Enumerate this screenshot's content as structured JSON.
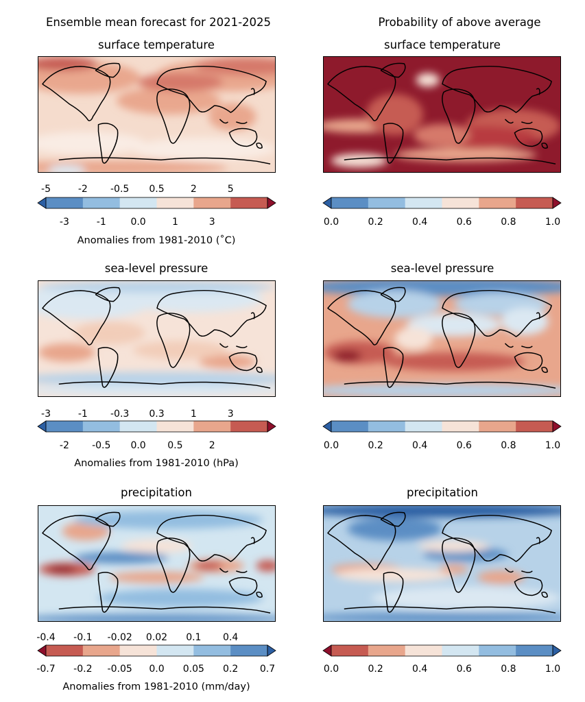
{
  "header": {
    "left_title": "Ensemble mean forecast for 2021-2025",
    "right_title": "Probability of above average"
  },
  "rows": [
    {
      "variable": "surface temperature",
      "left": {
        "upper_ticks": [
          "-5",
          "-2",
          "-0.5",
          "0.5",
          "2",
          "5"
        ],
        "lower_ticks": [
          "-3",
          "-1",
          "0.0",
          "1",
          "3"
        ],
        "label": "Anomalies from 1981-2010 (˚C)",
        "colors": [
          "#2c5fa3",
          "#5b8ec4",
          "#93bde0",
          "#d3e6f1",
          "#f6e3d8",
          "#e8a68c",
          "#c65b52",
          "#8e0f2b"
        ],
        "map_base": "#f5dccd",
        "map_blobs": [
          [
            "#e9a78e",
            0.18,
            0.18,
            0.25,
            0.14
          ],
          [
            "#e9a78e",
            0.8,
            0.16,
            0.3,
            0.14
          ],
          [
            "#d6796a",
            0.88,
            0.08,
            0.22,
            0.08
          ],
          [
            "#e9a78e",
            0.55,
            0.38,
            0.22,
            0.12
          ],
          [
            "#d6796a",
            0.6,
            0.22,
            0.18,
            0.08
          ],
          [
            "#e9a78e",
            0.82,
            0.52,
            0.1,
            0.12
          ],
          [
            "#f9ece4",
            0.2,
            0.75,
            0.25,
            0.1
          ],
          [
            "#f9ece4",
            0.7,
            0.8,
            0.3,
            0.1
          ],
          [
            "#e9a78e",
            0.3,
            0.96,
            0.5,
            0.06
          ],
          [
            "#c65b52",
            0.1,
            0.06,
            0.15,
            0.06
          ],
          [
            "#dbe8f2",
            0.12,
            0.98,
            0.08,
            0.04
          ]
        ]
      },
      "right": {
        "ticks": [
          "0.0",
          "0.2",
          "0.4",
          "0.6",
          "0.8",
          "1.0"
        ],
        "colors": [
          "#2c5fa3",
          "#5b8ec4",
          "#93bde0",
          "#d3e6f1",
          "#f6e3d8",
          "#e8a68c",
          "#c65b52",
          "#8e0f2b"
        ],
        "map_base": "#8e1a2c",
        "map_blobs": [
          [
            "#f6e3d8",
            0.44,
            0.2,
            0.05,
            0.06
          ],
          [
            "#e8a68c",
            0.15,
            0.6,
            0.18,
            0.06
          ],
          [
            "#e8a68c",
            0.6,
            0.85,
            0.3,
            0.06
          ],
          [
            "#f6e3d8",
            0.15,
            0.9,
            0.12,
            0.06
          ],
          [
            "#c65b52",
            0.8,
            0.6,
            0.2,
            0.15
          ],
          [
            "#c65b52",
            0.3,
            0.5,
            0.12,
            0.18
          ],
          [
            "#b83a3f",
            0.65,
            0.7,
            0.25,
            0.1
          ],
          [
            "#d6796a",
            0.5,
            0.68,
            0.12,
            0.1
          ]
        ]
      }
    },
    {
      "variable": "sea-level pressure",
      "left": {
        "upper_ticks": [
          "-3",
          "-1",
          "-0.3",
          "0.3",
          "1",
          "3"
        ],
        "lower_ticks": [
          "-2",
          "-0.5",
          "0.0",
          "0.5",
          "2"
        ],
        "label": "Anomalies from 1981-2010 (hPa)",
        "colors": [
          "#2c5fa3",
          "#5b8ec4",
          "#93bde0",
          "#d3e6f1",
          "#f6e3d8",
          "#e8a68c",
          "#c65b52",
          "#8e0f2b"
        ],
        "map_base": "#f6e3d8",
        "map_blobs": [
          [
            "#dbe8f2",
            0.2,
            0.18,
            0.28,
            0.15
          ],
          [
            "#dbe8f2",
            0.65,
            0.15,
            0.3,
            0.12
          ],
          [
            "#b7d2e8",
            0.5,
            0.05,
            0.5,
            0.05
          ],
          [
            "#e8a68c",
            0.12,
            0.62,
            0.12,
            0.08
          ],
          [
            "#e8a68c",
            0.8,
            0.7,
            0.12,
            0.06
          ],
          [
            "#f2cdb9",
            0.6,
            0.6,
            0.2,
            0.08
          ],
          [
            "#b7d2e8",
            0.5,
            0.85,
            0.6,
            0.06
          ],
          [
            "#dbe8f2",
            0.5,
            0.95,
            0.6,
            0.05
          ],
          [
            "#f2cdb9",
            0.3,
            0.45,
            0.15,
            0.1
          ]
        ]
      },
      "right": {
        "ticks": [
          "0.0",
          "0.2",
          "0.4",
          "0.6",
          "0.8",
          "1.0"
        ],
        "colors": [
          "#2c5fa3",
          "#5b8ec4",
          "#93bde0",
          "#d3e6f1",
          "#f6e3d8",
          "#e8a68c",
          "#c65b52",
          "#8e0f2b"
        ],
        "map_base": "#e8a68c",
        "map_blobs": [
          [
            "#5b8ec4",
            0.5,
            0.05,
            0.6,
            0.08
          ],
          [
            "#b7d2e8",
            0.3,
            0.2,
            0.2,
            0.12
          ],
          [
            "#b7d2e8",
            0.75,
            0.2,
            0.2,
            0.1
          ],
          [
            "#dbe8f2",
            0.55,
            0.38,
            0.2,
            0.1
          ],
          [
            "#c65b52",
            0.15,
            0.62,
            0.15,
            0.1
          ],
          [
            "#8e1a2c",
            0.1,
            0.65,
            0.06,
            0.05
          ],
          [
            "#c65b52",
            0.55,
            0.7,
            0.3,
            0.08
          ],
          [
            "#b7d2e8",
            0.5,
            0.95,
            0.6,
            0.06
          ],
          [
            "#dbe8f2",
            0.85,
            0.35,
            0.1,
            0.12
          ],
          [
            "#f6e3d8",
            0.38,
            0.5,
            0.08,
            0.1
          ]
        ]
      }
    },
    {
      "variable": "precipitation",
      "left": {
        "upper_ticks": [
          "-0.4",
          "-0.1",
          "-0.02",
          "0.02",
          "0.1",
          "0.4"
        ],
        "lower_ticks": [
          "-0.7",
          "-0.2",
          "-0.05",
          "0.0",
          "0.05",
          "0.2",
          "0.7"
        ],
        "label": "Anomalies from 1981-2010 (mm/day)",
        "colors": [
          "#8e0f2b",
          "#c65b52",
          "#e8a68c",
          "#f6e3d8",
          "#d3e6f1",
          "#93bde0",
          "#5b8ec4",
          "#2c5fa3"
        ],
        "map_base": "#d3e6f1",
        "map_blobs": [
          [
            "#e8a68c",
            0.2,
            0.22,
            0.1,
            0.08
          ],
          [
            "#93bde0",
            0.55,
            0.12,
            0.4,
            0.08
          ],
          [
            "#c65b52",
            0.12,
            0.55,
            0.12,
            0.06
          ],
          [
            "#8e1a2c",
            0.1,
            0.55,
            0.06,
            0.03
          ],
          [
            "#5b8ec4",
            0.35,
            0.45,
            0.2,
            0.05
          ],
          [
            "#e8a68c",
            0.75,
            0.52,
            0.12,
            0.06
          ],
          [
            "#c65b52",
            0.72,
            0.52,
            0.06,
            0.04
          ],
          [
            "#e8a68c",
            0.5,
            0.62,
            0.2,
            0.05
          ],
          [
            "#93bde0",
            0.6,
            0.8,
            0.35,
            0.08
          ],
          [
            "#5b8ec4",
            0.5,
            0.98,
            0.6,
            0.04
          ],
          [
            "#f6e3d8",
            0.5,
            0.35,
            0.15,
            0.06
          ],
          [
            "#c65b52",
            0.97,
            0.52,
            0.05,
            0.05
          ]
        ]
      },
      "right": {
        "ticks": [
          "0.0",
          "0.2",
          "0.4",
          "0.6",
          "0.8",
          "1.0"
        ],
        "colors": [
          "#8e0f2b",
          "#c65b52",
          "#e8a68c",
          "#f6e3d8",
          "#d3e6f1",
          "#93bde0",
          "#5b8ec4",
          "#2c5fa3"
        ],
        "map_base": "#b7d2e8",
        "map_blobs": [
          [
            "#2c5fa3",
            0.5,
            0.04,
            0.6,
            0.06
          ],
          [
            "#5b8ec4",
            0.3,
            0.2,
            0.2,
            0.1
          ],
          [
            "#5b8ec4",
            0.6,
            0.42,
            0.18,
            0.06
          ],
          [
            "#e8a68c",
            0.18,
            0.55,
            0.15,
            0.05
          ],
          [
            "#f6e3d8",
            0.3,
            0.6,
            0.25,
            0.06
          ],
          [
            "#e8a68c",
            0.75,
            0.62,
            0.1,
            0.06
          ],
          [
            "#f6e3d8",
            0.55,
            0.35,
            0.15,
            0.05
          ],
          [
            "#dbe8f2",
            0.6,
            0.8,
            0.4,
            0.1
          ],
          [
            "#5b8ec4",
            0.5,
            0.97,
            0.6,
            0.04
          ],
          [
            "#e8a68c",
            0.55,
            0.55,
            0.06,
            0.04
          ]
        ]
      }
    }
  ]
}
